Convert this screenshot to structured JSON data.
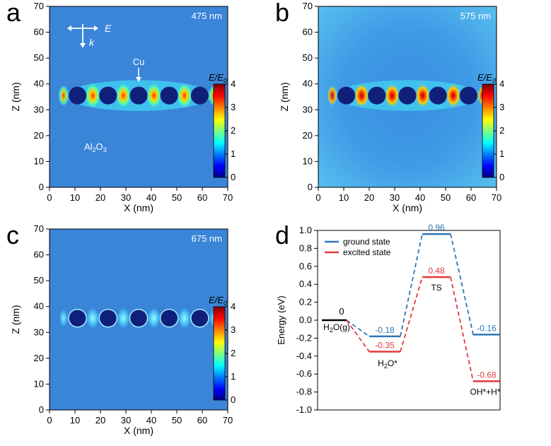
{
  "panels": {
    "a": {
      "letter": "a",
      "wavelength": "475 nm",
      "peak": "hot"
    },
    "b": {
      "letter": "b",
      "wavelength": "575 nm",
      "peak": "max"
    },
    "c": {
      "letter": "c",
      "wavelength": "675 nm",
      "peak": "weak"
    },
    "d": {
      "letter": "d"
    }
  },
  "map_axes": {
    "xlabel": "X (nm)",
    "ylabel": "Z (nm)",
    "ticks": [
      "0",
      "10",
      "20",
      "30",
      "40",
      "50",
      "60",
      "70"
    ]
  },
  "colorbar": {
    "title_main": "E/E",
    "title_sub": "0",
    "ticks": [
      "0",
      "1",
      "2",
      "3",
      "4"
    ]
  },
  "annotations": {
    "e_label": "E",
    "k_label": "k",
    "cu_label": "Cu",
    "al2o3_main": "Al",
    "al2o3_sub1": "2",
    "al2o3_mid": "O",
    "al2o3_sub2": "3"
  },
  "chart_data": {
    "type": "line",
    "ylabel": "Energy (eV)",
    "ylim": [
      -1.0,
      1.0
    ],
    "yticks": [
      "1.0",
      "0.8",
      "0.6",
      "0.4",
      "0.2",
      "0.0",
      "-0.2",
      "-0.4",
      "-0.6",
      "-0.8",
      "-1.0"
    ],
    "legend_position": "top-left",
    "states": [
      "H2O(g)",
      "H2O*",
      "TS",
      "OH*+H*"
    ],
    "reference_label": "0",
    "series": [
      {
        "name": "ground state",
        "color": "#2e75b6",
        "values": [
          0,
          -0.18,
          0.96,
          -0.16
        ],
        "labels": [
          "",
          "-0.18",
          "0.96",
          "-0.16"
        ]
      },
      {
        "name": "excited state",
        "color": "#e0393b",
        "values": [
          0,
          -0.35,
          0.48,
          -0.68
        ],
        "labels": [
          "",
          "-0.35",
          "0.48",
          "-0.68"
        ]
      }
    ],
    "state_labels": {
      "h2o_g": "H",
      "h2o_g_sub": "2",
      "h2o_g_rest": "O(g)",
      "h2o_ads": "H",
      "h2o_ads_sub": "2",
      "h2o_ads_rest": "O*",
      "ts": "TS",
      "product": "OH*+H*"
    }
  }
}
